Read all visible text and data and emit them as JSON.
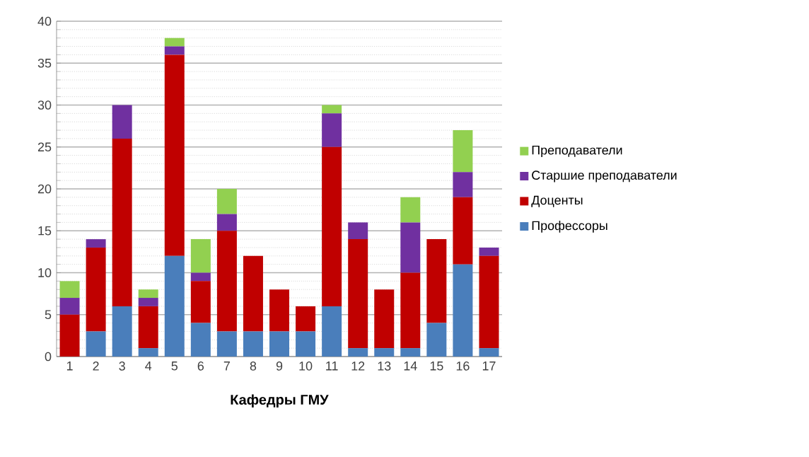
{
  "chart_data": {
    "type": "bar",
    "stacked": true,
    "xlabel": "**Кафедры ГМУ**",
    "categories": [
      "1",
      "2",
      "3",
      "4",
      "5",
      "6",
      "7",
      "8",
      "9",
      "10",
      "11",
      "12",
      "13",
      "14",
      "15",
      "16",
      "17"
    ],
    "series": [
      {
        "name": "Профессоры",
        "color": "#4a7ebb",
        "values": [
          0,
          3,
          6,
          1,
          12,
          4,
          3,
          3,
          3,
          3,
          6,
          1,
          1,
          1,
          4,
          11,
          1
        ]
      },
      {
        "name": "Доценты",
        "color": "#c00000",
        "values": [
          5,
          10,
          20,
          5,
          24,
          5,
          12,
          9,
          5,
          3,
          19,
          13,
          7,
          9,
          10,
          8,
          11
        ]
      },
      {
        "name": "Старшие преподаватели",
        "color": "#7030a0",
        "values": [
          2,
          1,
          4,
          1,
          1,
          1,
          2,
          0,
          0,
          0,
          4,
          2,
          0,
          6,
          0,
          3,
          1
        ]
      },
      {
        "name": "Преподаватели",
        "color": "#92d050",
        "values": [
          2,
          0,
          0,
          1,
          1,
          4,
          3,
          0,
          0,
          0,
          1,
          0,
          0,
          3,
          0,
          5,
          0
        ]
      }
    ],
    "ylim": [
      0,
      40
    ],
    "yticks": [
      0,
      5,
      10,
      15,
      20,
      25,
      30,
      35,
      40
    ],
    "grid": "y",
    "legend": "right"
  }
}
